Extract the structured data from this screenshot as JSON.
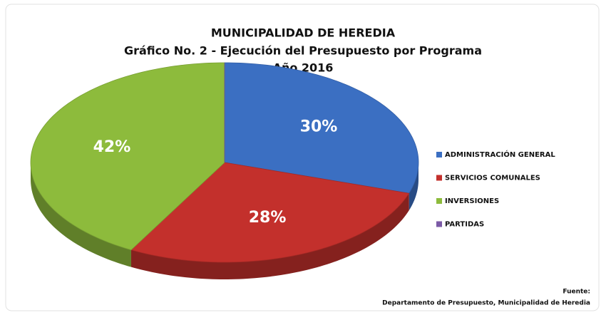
{
  "chart_data": {
    "type": "pie",
    "title": "MUNICIPALIDAD DE HEREDIA",
    "subtitle": [
      "Gráfico No. 2 - Ejecución del Presupuesto por Programa",
      "Año 2016"
    ],
    "categories": [
      "ADMINISTRACIÓN GENERAL",
      "SERVICIOS COMUNALES",
      "INVERSIONES",
      "PARTIDAS"
    ],
    "values": [
      30,
      28,
      42,
      0
    ],
    "value_labels": [
      "30%",
      "28%",
      "42%",
      null
    ],
    "colors": [
      "#3b6fc2",
      "#c3302c",
      "#8dbb3c",
      "#7b5aa6"
    ],
    "legend": "right",
    "source": [
      "Fuente:",
      "Departamento de Presupuesto, Municipalidad de Heredia"
    ]
  }
}
